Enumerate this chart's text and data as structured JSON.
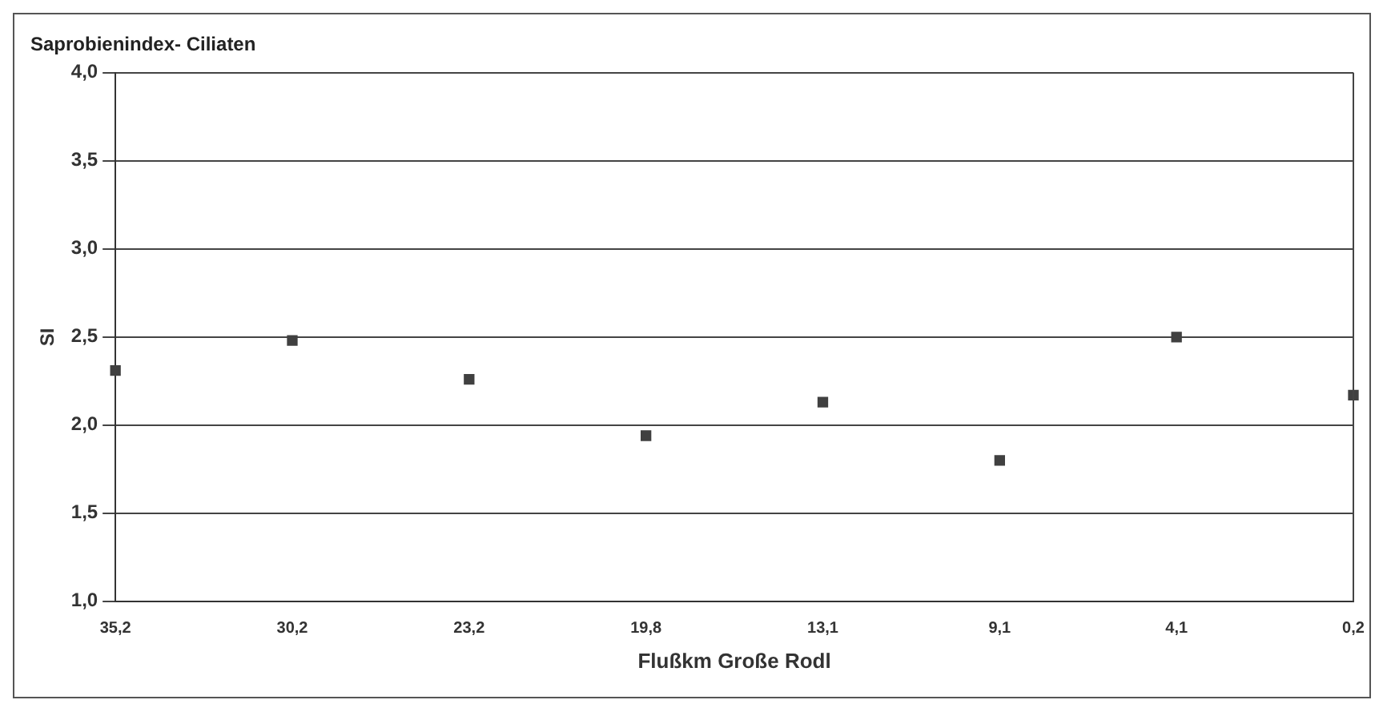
{
  "chart_data": {
    "type": "scatter",
    "title": "Saprobienindex- Ciliaten",
    "xlabel": "Flußkm Große Rodl",
    "ylabel": "SI",
    "categories": [
      "35,2",
      "30,2",
      "23,2",
      "19,8",
      "13,1",
      "9,1",
      "4,1",
      "0,2"
    ],
    "series": [
      {
        "color": "#404040",
        "values": [
          2.31,
          2.48,
          2.26,
          1.94,
          2.13,
          1.8,
          2.5,
          2.17
        ]
      }
    ],
    "ylim": [
      1,
      4
    ],
    "yticks": [
      {
        "value": 1,
        "label": "1,0"
      },
      {
        "value": 1.5,
        "label": "1,5"
      },
      {
        "value": 2,
        "label": "2,0"
      },
      {
        "value": 2.5,
        "label": "2,5"
      },
      {
        "value": 3,
        "label": "3,0"
      },
      {
        "value": 3.5,
        "label": "3,5"
      },
      {
        "value": 4,
        "label": "4,0"
      }
    ],
    "grid": "y",
    "legend": false,
    "marker": "square"
  }
}
